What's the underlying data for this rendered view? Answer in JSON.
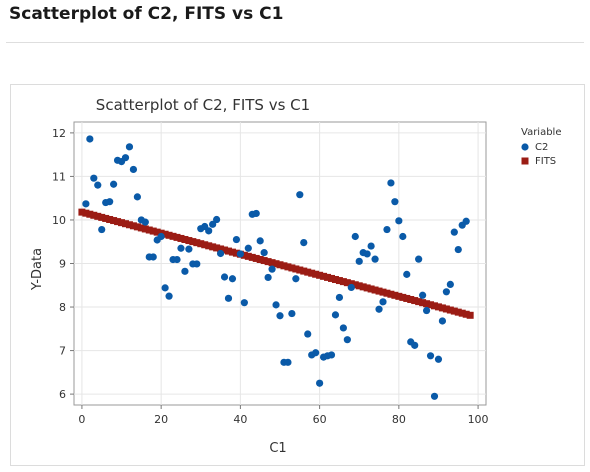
{
  "page": {
    "heading": "Scatterplot of C2, FITS vs C1"
  },
  "chart_data": {
    "type": "scatter",
    "title": "Scatterplot of C2, FITS vs C1",
    "xlabel": "C1",
    "ylabel": "Y-Data",
    "xlim": [
      -2,
      102
    ],
    "ylim": [
      5.75,
      12.25
    ],
    "xticks": [
      "0",
      "20",
      "40",
      "60",
      "80",
      "100"
    ],
    "yticks": [
      "6",
      "7",
      "8",
      "9",
      "10",
      "11",
      "12"
    ],
    "grid": true,
    "legend_position": "top-right",
    "legend": {
      "title": "Variable"
    },
    "series": [
      {
        "name": "C2",
        "marker": "circle",
        "color": "#0a5aa8",
        "points": [
          [
            1,
            10.37
          ],
          [
            2,
            11.86
          ],
          [
            3,
            10.96
          ],
          [
            4,
            10.8
          ],
          [
            5,
            9.78
          ],
          [
            6,
            10.4
          ],
          [
            7,
            10.42
          ],
          [
            8,
            10.82
          ],
          [
            9,
            11.37
          ],
          [
            10,
            11.34
          ],
          [
            11,
            11.43
          ],
          [
            12,
            11.68
          ],
          [
            13,
            11.16
          ],
          [
            14,
            10.53
          ],
          [
            15,
            10.0
          ],
          [
            16,
            9.95
          ],
          [
            17,
            9.15
          ],
          [
            18,
            9.15
          ],
          [
            19,
            9.54
          ],
          [
            20,
            9.62
          ],
          [
            21,
            8.44
          ],
          [
            22,
            8.25
          ],
          [
            23,
            9.09
          ],
          [
            24,
            9.09
          ],
          [
            25,
            9.35
          ],
          [
            26,
            8.82
          ],
          [
            27,
            9.33
          ],
          [
            28,
            8.99
          ],
          [
            29,
            8.99
          ],
          [
            30,
            9.8
          ],
          [
            31,
            9.85
          ],
          [
            32,
            9.75
          ],
          [
            33,
            9.9
          ],
          [
            34,
            10.01
          ],
          [
            35,
            9.23
          ],
          [
            36,
            8.69
          ],
          [
            37,
            8.2
          ],
          [
            38,
            8.65
          ],
          [
            39,
            9.55
          ],
          [
            40,
            9.22
          ],
          [
            41,
            8.1
          ],
          [
            42,
            9.35
          ],
          [
            43,
            10.13
          ],
          [
            44,
            10.15
          ],
          [
            45,
            9.52
          ],
          [
            46,
            9.25
          ],
          [
            47,
            8.68
          ],
          [
            48,
            8.87
          ],
          [
            49,
            8.05
          ],
          [
            50,
            7.8
          ],
          [
            51,
            6.73
          ],
          [
            52,
            6.73
          ],
          [
            53,
            7.85
          ],
          [
            54,
            8.65
          ],
          [
            55,
            10.58
          ],
          [
            56,
            9.48
          ],
          [
            57,
            7.38
          ],
          [
            58,
            6.9
          ],
          [
            59,
            6.95
          ],
          [
            60,
            6.25
          ],
          [
            61,
            6.85
          ],
          [
            62,
            6.88
          ],
          [
            63,
            6.9
          ],
          [
            64,
            7.82
          ],
          [
            65,
            8.22
          ],
          [
            66,
            7.52
          ],
          [
            67,
            7.25
          ],
          [
            68,
            8.45
          ],
          [
            69,
            9.62
          ],
          [
            70,
            9.05
          ],
          [
            71,
            9.25
          ],
          [
            72,
            9.22
          ],
          [
            73,
            9.4
          ],
          [
            74,
            9.1
          ],
          [
            75,
            7.95
          ],
          [
            76,
            8.12
          ],
          [
            77,
            9.78
          ],
          [
            78,
            10.85
          ],
          [
            79,
            10.42
          ],
          [
            80,
            9.98
          ],
          [
            81,
            9.62
          ],
          [
            82,
            8.75
          ],
          [
            83,
            7.2
          ],
          [
            84,
            7.12
          ],
          [
            85,
            9.1
          ],
          [
            86,
            8.27
          ],
          [
            87,
            7.92
          ],
          [
            88,
            6.88
          ],
          [
            89,
            5.95
          ],
          [
            90,
            6.8
          ],
          [
            91,
            7.68
          ],
          [
            92,
            8.35
          ],
          [
            93,
            8.52
          ],
          [
            94,
            9.72
          ],
          [
            95,
            9.32
          ],
          [
            96,
            9.88
          ],
          [
            97,
            9.97
          ]
        ]
      },
      {
        "name": "FITS",
        "marker": "square",
        "color": "#9b1c14",
        "x_range": [
          0,
          98
        ],
        "fit_line": {
          "intercept": 10.18,
          "slope": -0.02418
        }
      }
    ]
  }
}
